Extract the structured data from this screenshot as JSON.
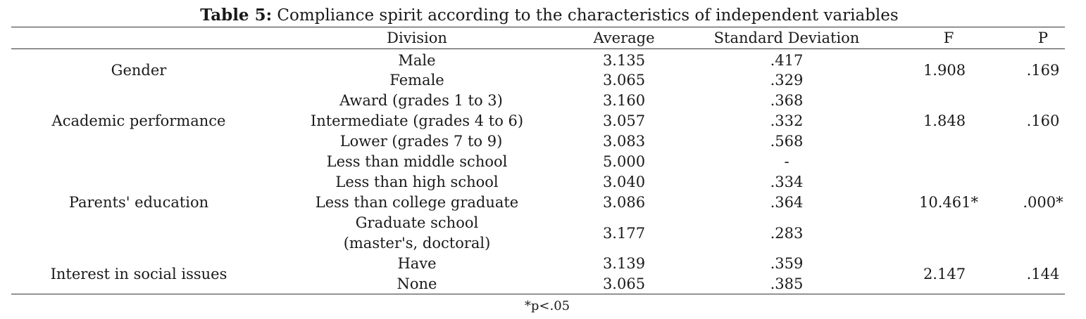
{
  "caption": {
    "label": "Table 5:",
    "text": "Compliance spirit according to the characteristics of independent variables"
  },
  "headers": {
    "division": "Division",
    "average": "Average",
    "sd": "Standard Deviation",
    "f": "F",
    "p": "P"
  },
  "groups": [
    {
      "name": "Gender",
      "f": "1.908",
      "p": ".169",
      "rows": [
        {
          "division": "Male",
          "average": "3.135",
          "sd": ".417"
        },
        {
          "division": "Female",
          "average": "3.065",
          "sd": ".329"
        }
      ]
    },
    {
      "name": "Academic performance",
      "f": "1.848",
      "p": ".160",
      "rows": [
        {
          "division": "Award (grades 1 to 3)",
          "average": "3.160",
          "sd": ".368"
        },
        {
          "division": "Intermediate (grades 4 to 6)",
          "average": "3.057",
          "sd": ".332"
        },
        {
          "division": "Lower (grades 7 to 9)",
          "average": "3.083",
          "sd": ".568"
        }
      ]
    },
    {
      "name": "Parents' education",
      "f": "10.461*",
      "p": ".000*",
      "rows": [
        {
          "division": "Less than middle school",
          "average": "5.000",
          "sd": "-"
        },
        {
          "division": "Less than high school",
          "average": "3.040",
          "sd": ".334"
        },
        {
          "division": "Less than college graduate",
          "average": "3.086",
          "sd": ".364"
        },
        {
          "division_line1": "Graduate school",
          "division_line2": "(master's, doctoral)",
          "average": "3.177",
          "sd": ".283"
        }
      ]
    },
    {
      "name": "Interest in social issues",
      "f": "2.147",
      "p": ".144",
      "rows": [
        {
          "division": "Have",
          "average": "3.139",
          "sd": ".359"
        },
        {
          "division": "None",
          "average": "3.065",
          "sd": ".385"
        }
      ]
    }
  ],
  "footnote": "*p<.05"
}
